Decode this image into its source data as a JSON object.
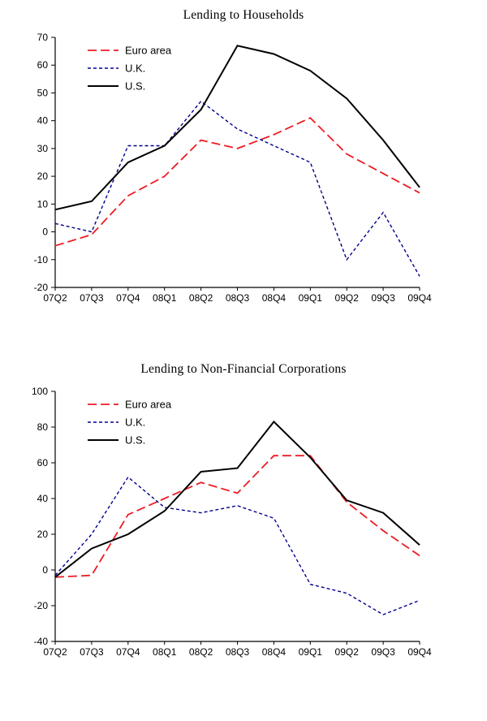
{
  "page": {
    "background": "#ffffff"
  },
  "chart_data": [
    {
      "type": "line",
      "title": "Lending to Households",
      "categories": [
        "07Q2",
        "07Q3",
        "07Q4",
        "08Q1",
        "08Q2",
        "08Q3",
        "08Q4",
        "09Q1",
        "09Q2",
        "09Q3",
        "09Q4"
      ],
      "ylim": [
        -20,
        70
      ],
      "ytick_step": 10,
      "grid": false,
      "legend_position": "top-left",
      "series": [
        {
          "name": "Euro area",
          "color": "#ed1c24",
          "line_style": "long-dash",
          "dash": "11 5",
          "width": 1.8,
          "values": [
            -5,
            -1,
            13,
            20,
            33,
            30,
            35,
            41,
            28,
            21,
            14
          ]
        },
        {
          "name": "U.K.",
          "color": "#00008b",
          "line_style": "short-dash",
          "dash": "4 3",
          "width": 1.4,
          "values": [
            3,
            0,
            31,
            31,
            47,
            37,
            31,
            25,
            -10,
            7,
            -16
          ]
        },
        {
          "name": "U.S.",
          "color": "#000000",
          "line_style": "solid",
          "dash": "",
          "width": 2,
          "values": [
            8,
            11,
            25,
            31,
            44,
            67,
            64,
            58,
            48,
            33,
            16
          ]
        }
      ]
    },
    {
      "type": "line",
      "title": "Lending to Non-Financial Corporations",
      "categories": [
        "07Q2",
        "07Q3",
        "07Q4",
        "08Q1",
        "08Q2",
        "08Q3",
        "08Q4",
        "09Q1",
        "09Q2",
        "09Q3",
        "09Q4"
      ],
      "ylim": [
        -40,
        100
      ],
      "ytick_step": 20,
      "grid": false,
      "legend_position": "top-left",
      "series": [
        {
          "name": "Euro area",
          "color": "#ed1c24",
          "line_style": "long-dash",
          "dash": "11 5",
          "width": 1.8,
          "values": [
            -4,
            -3,
            31,
            40,
            49,
            43,
            64,
            64,
            38,
            22,
            8
          ]
        },
        {
          "name": "U.K.",
          "color": "#00008b",
          "line_style": "short-dash",
          "dash": "4 3",
          "width": 1.4,
          "values": [
            -3,
            20,
            52,
            35,
            32,
            36,
            29,
            -8,
            -13,
            -25,
            -17
          ]
        },
        {
          "name": "U.S.",
          "color": "#000000",
          "line_style": "solid",
          "dash": "",
          "width": 2,
          "values": [
            -4,
            12,
            20,
            33,
            55,
            57,
            83,
            63,
            39,
            32,
            14
          ]
        }
      ]
    }
  ]
}
